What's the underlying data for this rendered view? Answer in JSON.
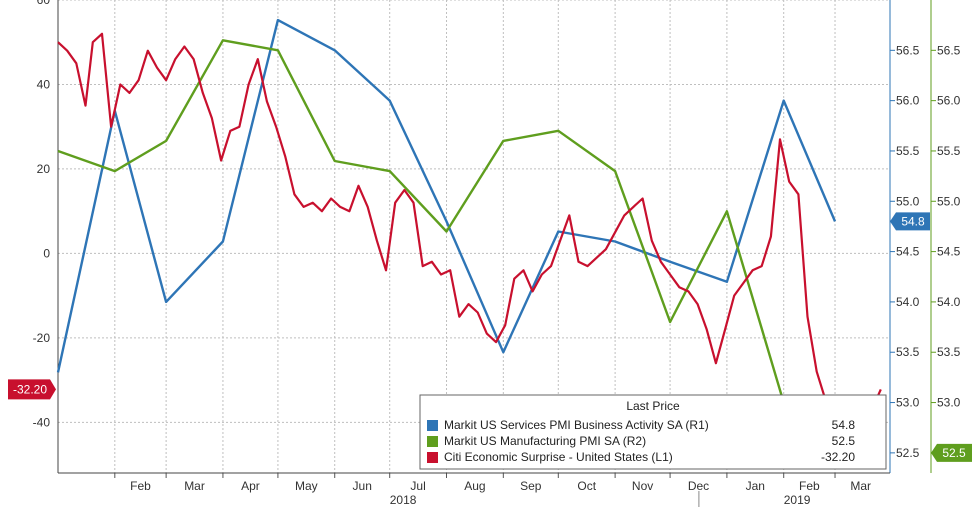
{
  "chart_data": {
    "type": "line",
    "grid": true,
    "legend_position": "bottom-right",
    "x_axis": {
      "range": [
        "2018-01-01",
        "2019-03-31"
      ],
      "month_ticks": [
        {
          "date": "2018-02-01",
          "label": "Feb"
        },
        {
          "date": "2018-03-01",
          "label": "Mar"
        },
        {
          "date": "2018-04-01",
          "label": "Apr"
        },
        {
          "date": "2018-05-01",
          "label": "May"
        },
        {
          "date": "2018-06-01",
          "label": "Jun"
        },
        {
          "date": "2018-07-01",
          "label": "Jul"
        },
        {
          "date": "2018-08-01",
          "label": "Aug"
        },
        {
          "date": "2018-09-01",
          "label": "Sep"
        },
        {
          "date": "2018-10-01",
          "label": "Oct"
        },
        {
          "date": "2018-11-01",
          "label": "Nov"
        },
        {
          "date": "2018-12-01",
          "label": "Dec"
        },
        {
          "date": "2019-01-01",
          "label": "Jan"
        },
        {
          "date": "2019-02-01",
          "label": "Feb"
        },
        {
          "date": "2019-03-01",
          "label": "Mar"
        }
      ],
      "year_labels": [
        {
          "date": "2018-07-01",
          "label": "2018"
        },
        {
          "date": "2019-02-01",
          "label": "2019"
        }
      ]
    },
    "left_axis": {
      "range": [
        -52,
        60
      ],
      "ticks": [
        {
          "value": 60,
          "label": "60"
        },
        {
          "value": 40,
          "label": "40"
        },
        {
          "value": 20,
          "label": "20"
        },
        {
          "value": 0,
          "label": "0"
        },
        {
          "value": -20,
          "label": "-20"
        },
        {
          "value": -40,
          "label": "-40"
        }
      ]
    },
    "right_axis": {
      "range": [
        52.3,
        57.0
      ],
      "ticks": [
        {
          "value": 56.5,
          "label": "56.5"
        },
        {
          "value": 56.0,
          "label": "56.0"
        },
        {
          "value": 55.5,
          "label": "55.5"
        },
        {
          "value": 55.0,
          "label": "55.0"
        },
        {
          "value": 54.5,
          "label": "54.5"
        },
        {
          "value": 54.0,
          "label": "54.0"
        },
        {
          "value": 53.5,
          "label": "53.5"
        },
        {
          "value": 53.0,
          "label": "53.0"
        },
        {
          "value": 52.5,
          "label": "52.5"
        }
      ]
    },
    "legend": {
      "title": "Last Price",
      "entries": [
        {
          "name": "Markit US Services PMI Business Activity SA  (R1)",
          "value": "54.8"
        },
        {
          "name": "Markit US Manufacturing PMI SA  (R2)",
          "value": "52.5"
        },
        {
          "name": "Citi Economic Surprise - United States  (L1)",
          "value": "-32.20"
        }
      ]
    },
    "series": [
      {
        "name": "Markit US Services PMI Business Activity SA  (R1)",
        "color": "#2e75b6",
        "axis": "right",
        "last_label": "54.8",
        "points": [
          [
            "2018-01-01",
            53.3
          ],
          [
            "2018-02-01",
            55.9
          ],
          [
            "2018-03-01",
            54.0
          ],
          [
            "2018-04-01",
            54.6
          ],
          [
            "2018-05-01",
            56.8
          ],
          [
            "2018-06-01",
            56.5
          ],
          [
            "2018-07-01",
            56.0
          ],
          [
            "2018-08-01",
            54.8
          ],
          [
            "2018-09-01",
            53.5
          ],
          [
            "2018-10-01",
            54.7
          ],
          [
            "2018-11-01",
            54.6
          ],
          [
            "2018-12-01",
            54.4
          ],
          [
            "2019-01-01",
            54.2
          ],
          [
            "2019-02-01",
            56.0
          ],
          [
            "2019-03-01",
            54.8
          ]
        ]
      },
      {
        "name": "Markit US Manufacturing PMI SA  (R2)",
        "color": "#5f9e1e",
        "axis": "right",
        "last_label": "52.5",
        "points": [
          [
            "2018-01-01",
            55.5
          ],
          [
            "2018-02-01",
            55.3
          ],
          [
            "2018-03-01",
            55.6
          ],
          [
            "2018-04-01",
            56.6
          ],
          [
            "2018-05-01",
            56.5
          ],
          [
            "2018-06-01",
            55.4
          ],
          [
            "2018-07-01",
            55.3
          ],
          [
            "2018-08-01",
            54.7
          ],
          [
            "2018-09-01",
            55.6
          ],
          [
            "2018-10-01",
            55.7
          ],
          [
            "2018-11-01",
            55.3
          ],
          [
            "2018-12-01",
            53.8
          ],
          [
            "2019-01-01",
            54.9
          ],
          [
            "2019-02-01",
            53.0
          ],
          [
            "2019-03-01",
            52.5
          ]
        ]
      },
      {
        "name": "Citi Economic Surprise - United States  (L1)",
        "color": "#c8102e",
        "axis": "left",
        "last_label": "-32.20",
        "points": [
          [
            "2018-01-01",
            50
          ],
          [
            "2018-01-06",
            48
          ],
          [
            "2018-01-11",
            45
          ],
          [
            "2018-01-16",
            35
          ],
          [
            "2018-01-20",
            50
          ],
          [
            "2018-01-25",
            52
          ],
          [
            "2018-01-30",
            30
          ],
          [
            "2018-02-04",
            40
          ],
          [
            "2018-02-09",
            38
          ],
          [
            "2018-02-14",
            41
          ],
          [
            "2018-02-19",
            48
          ],
          [
            "2018-02-24",
            44
          ],
          [
            "2018-03-01",
            41
          ],
          [
            "2018-03-06",
            46
          ],
          [
            "2018-03-11",
            49
          ],
          [
            "2018-03-16",
            46
          ],
          [
            "2018-03-21",
            38
          ],
          [
            "2018-03-26",
            32
          ],
          [
            "2018-03-31",
            22
          ],
          [
            "2018-04-05",
            29
          ],
          [
            "2018-04-10",
            30
          ],
          [
            "2018-04-15",
            40
          ],
          [
            "2018-04-20",
            46
          ],
          [
            "2018-04-25",
            36
          ],
          [
            "2018-04-30",
            30
          ],
          [
            "2018-05-05",
            23
          ],
          [
            "2018-05-10",
            14
          ],
          [
            "2018-05-15",
            11
          ],
          [
            "2018-05-20",
            12
          ],
          [
            "2018-05-25",
            10
          ],
          [
            "2018-05-30",
            13
          ],
          [
            "2018-06-04",
            11
          ],
          [
            "2018-06-09",
            10
          ],
          [
            "2018-06-14",
            16
          ],
          [
            "2018-06-19",
            11
          ],
          [
            "2018-06-24",
            3
          ],
          [
            "2018-06-29",
            -4
          ],
          [
            "2018-07-04",
            12
          ],
          [
            "2018-07-09",
            15
          ],
          [
            "2018-07-14",
            12
          ],
          [
            "2018-07-19",
            -3
          ],
          [
            "2018-07-24",
            -2
          ],
          [
            "2018-07-29",
            -5
          ],
          [
            "2018-08-03",
            -4
          ],
          [
            "2018-08-08",
            -15
          ],
          [
            "2018-08-13",
            -12
          ],
          [
            "2018-08-18",
            -14
          ],
          [
            "2018-08-23",
            -19
          ],
          [
            "2018-08-28",
            -21
          ],
          [
            "2018-09-02",
            -17
          ],
          [
            "2018-09-07",
            -6
          ],
          [
            "2018-09-12",
            -4
          ],
          [
            "2018-09-17",
            -9
          ],
          [
            "2018-09-22",
            -5
          ],
          [
            "2018-09-27",
            -3
          ],
          [
            "2018-10-02",
            3
          ],
          [
            "2018-10-07",
            9
          ],
          [
            "2018-10-12",
            -2
          ],
          [
            "2018-10-17",
            -3
          ],
          [
            "2018-10-22",
            -1
          ],
          [
            "2018-10-27",
            1
          ],
          [
            "2018-11-01",
            5
          ],
          [
            "2018-11-06",
            9
          ],
          [
            "2018-11-11",
            11
          ],
          [
            "2018-11-16",
            13
          ],
          [
            "2018-11-21",
            3
          ],
          [
            "2018-11-26",
            -2
          ],
          [
            "2018-12-01",
            -5
          ],
          [
            "2018-12-06",
            -8
          ],
          [
            "2018-12-11",
            -9
          ],
          [
            "2018-12-16",
            -12
          ],
          [
            "2018-12-21",
            -18
          ],
          [
            "2018-12-26",
            -26
          ],
          [
            "2018-12-31",
            -18
          ],
          [
            "2019-01-05",
            -10
          ],
          [
            "2019-01-10",
            -7
          ],
          [
            "2019-01-15",
            -4
          ],
          [
            "2019-01-20",
            -3
          ],
          [
            "2019-01-25",
            4
          ],
          [
            "2019-01-30",
            27
          ],
          [
            "2019-02-04",
            17
          ],
          [
            "2019-02-09",
            14
          ],
          [
            "2019-02-14",
            -15
          ],
          [
            "2019-02-19",
            -28
          ],
          [
            "2019-02-24",
            -35
          ],
          [
            "2019-03-01",
            -43
          ],
          [
            "2019-03-06",
            -35
          ],
          [
            "2019-03-11",
            -36
          ],
          [
            "2019-03-16",
            -39
          ],
          [
            "2019-03-21",
            -37
          ],
          [
            "2019-03-26",
            -32.2
          ]
        ]
      }
    ]
  }
}
